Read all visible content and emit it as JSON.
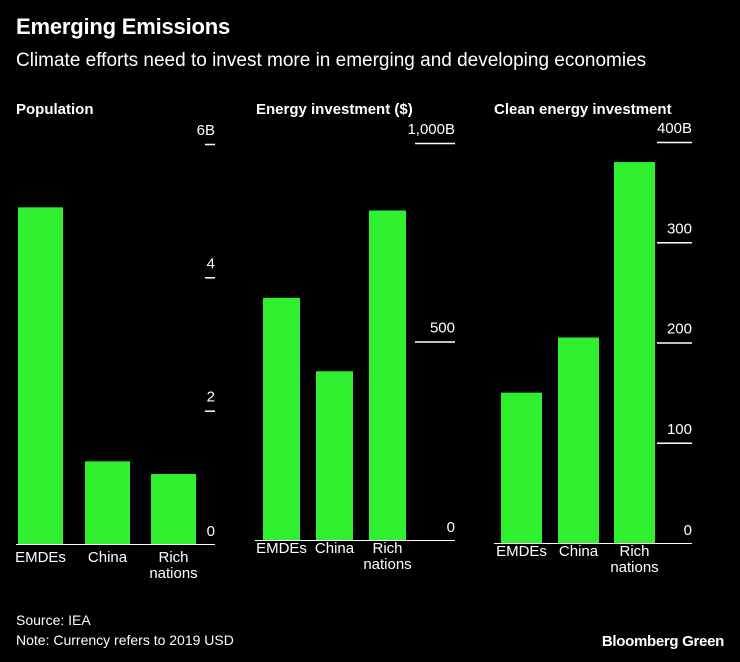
{
  "title": "Emerging Emissions",
  "subtitle": "Climate efforts need to invest more in emerging and developing economies",
  "footer": {
    "source": "Source: IEA",
    "note": "Note: Currency refers to 2019 USD",
    "brand": "Bloomberg Green"
  },
  "colors": {
    "bar": "#2ef02e",
    "background": "#000000",
    "text": "#ffffff"
  },
  "chart_data": [
    {
      "type": "bar",
      "title": "Population",
      "categories": [
        "EMDEs",
        "China",
        "Rich\nnations"
      ],
      "values": [
        5.05,
        1.24,
        1.05
      ],
      "ylim": [
        0,
        6
      ],
      "ticks": [
        {
          "value": 6,
          "label": "6B"
        },
        {
          "value": 4,
          "label": "4"
        },
        {
          "value": 2,
          "label": "2"
        },
        {
          "value": 0,
          "label": "0"
        }
      ]
    },
    {
      "type": "bar",
      "title": "Energy investment ($)",
      "categories": [
        "EMDEs",
        "China",
        "Rich\nnations"
      ],
      "values": [
        610,
        425,
        830
      ],
      "ylim": [
        0,
        1000
      ],
      "ticks": [
        {
          "value": 1000,
          "label": "1,000B"
        },
        {
          "value": 500,
          "label": "500"
        },
        {
          "value": 0,
          "label": "0"
        }
      ]
    },
    {
      "type": "bar",
      "title": "Clean energy investment",
      "categories": [
        "EMDEs",
        "China",
        "Rich\nnations"
      ],
      "values": [
        150,
        205,
        380
      ],
      "ylim": [
        0,
        400
      ],
      "ticks": [
        {
          "value": 400,
          "label": "400B"
        },
        {
          "value": 300,
          "label": "300"
        },
        {
          "value": 200,
          "label": "200"
        },
        {
          "value": 100,
          "label": "100"
        },
        {
          "value": 0,
          "label": "0"
        }
      ]
    }
  ]
}
